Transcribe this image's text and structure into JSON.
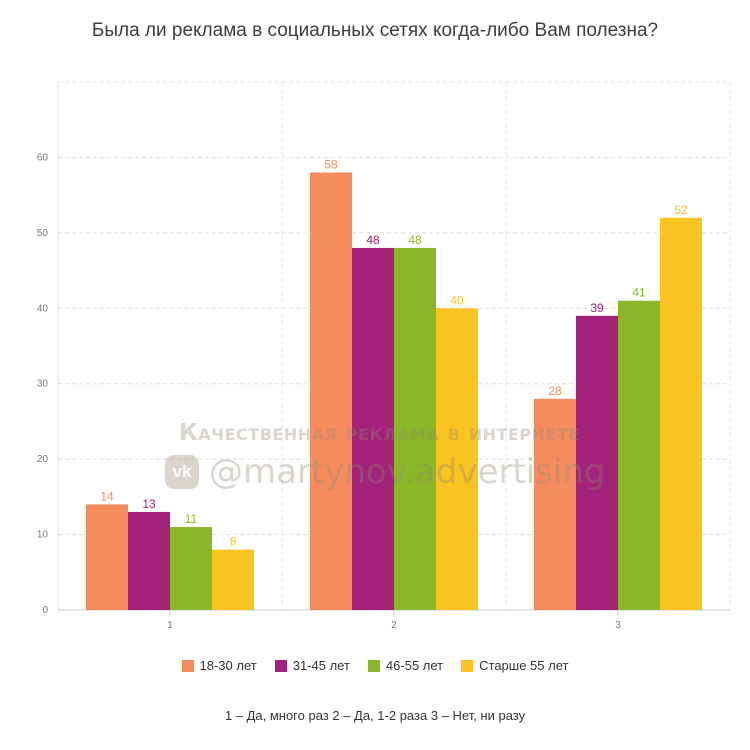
{
  "title": "Была ли реклама в социальных сетях когда-либо Вам полезна?",
  "chart_data": {
    "type": "bar",
    "title": "Была ли реклама в социальных сетях когда-либо Вам полезна?",
    "categories": [
      "1",
      "2",
      "3"
    ],
    "series": [
      {
        "name": "18-30 лет",
        "color": "#F58C5E",
        "values": [
          14,
          58,
          28
        ]
      },
      {
        "name": "31-45 лет",
        "color": "#A2217A",
        "values": [
          13,
          48,
          39
        ]
      },
      {
        "name": "46-55 лет",
        "color": "#8AB727",
        "values": [
          11,
          48,
          41
        ]
      },
      {
        "name": "Старше 55 лет",
        "color": "#F9C421",
        "values": [
          8,
          40,
          52
        ]
      }
    ],
    "yticks": [
      0,
      10,
      20,
      30,
      40,
      50,
      60
    ],
    "ylim": [
      0,
      70
    ],
    "xlabel": "",
    "ylabel": "",
    "grid": true,
    "legend_position": "bottom"
  },
  "footnote": "1 – Да, много раз    2 – Да, 1-2 раза    3 – Нет, ни разу",
  "watermark": {
    "line1": "Качественная реклама в интернете",
    "logo": "vk",
    "handle": "@martynov.advertising"
  }
}
